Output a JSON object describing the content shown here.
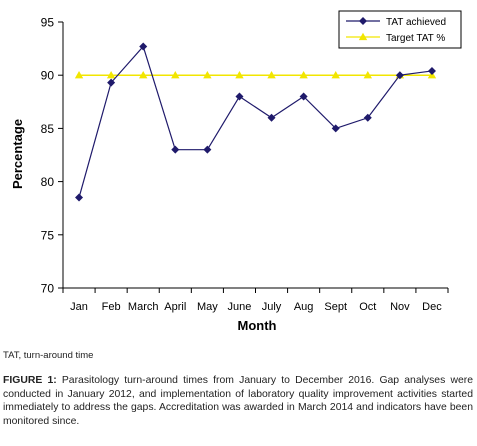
{
  "chart_data": {
    "type": "line",
    "xlabel": "Month",
    "ylabel": "Percentage",
    "categories": [
      "Jan",
      "Feb",
      "March",
      "April",
      "May",
      "June",
      "July",
      "Aug",
      "Sept",
      "Oct",
      "Nov",
      "Dec"
    ],
    "ylim": [
      70,
      95
    ],
    "yticks": [
      70,
      75,
      80,
      85,
      90,
      95
    ],
    "grid": false,
    "legend_position": "top-right",
    "series": [
      {
        "name": "TAT achieved",
        "marker": "diamond",
        "color": "#1f1a6b",
        "values": [
          78.5,
          89.3,
          92.7,
          83.0,
          83.0,
          88.0,
          86.0,
          88.0,
          85.0,
          86.0,
          90.0,
          90.4
        ]
      },
      {
        "name": "Target TAT %",
        "marker": "triangle",
        "color": "#f2e600",
        "values": [
          90,
          90,
          90,
          90,
          90,
          90,
          90,
          90,
          90,
          90,
          90,
          90
        ]
      }
    ]
  },
  "footnote": "TAT, turn-around time",
  "caption": {
    "label": "FIGURE 1:",
    "text": " Parasitology turn-around times from January to December 2016. Gap analyses were conducted in January 2012, and implementation of laboratory quality improvement activities started immediately to address the gaps. Accreditation was awarded in March 2014 and indicators have been monitored since."
  }
}
